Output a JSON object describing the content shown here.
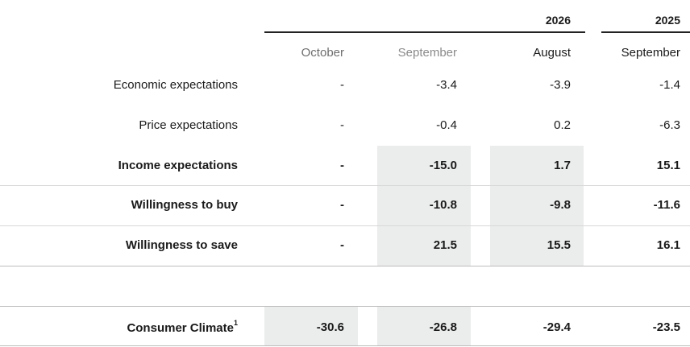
{
  "years": {
    "current": "2026",
    "previous": "2025"
  },
  "months": [
    "October",
    "September",
    "August",
    "September"
  ],
  "rows": [
    {
      "label": "Economic expectations",
      "bold": false,
      "values": [
        "-",
        "-3.4",
        "-3.9",
        "-1.4"
      ]
    },
    {
      "label": "Price expectations",
      "bold": false,
      "values": [
        "-",
        "-0.4",
        "0.2",
        "-6.3"
      ]
    },
    {
      "label": "Income expectations",
      "bold": true,
      "values": [
        "-",
        "-15.0",
        "1.7",
        "15.1"
      ]
    },
    {
      "label": "Willingness to buy",
      "bold": true,
      "values": [
        "-",
        "-10.8",
        "-9.8",
        "-11.6"
      ]
    },
    {
      "label": "Willingness to save",
      "bold": true,
      "values": [
        "-",
        "21.5",
        "15.5",
        "16.1"
      ]
    }
  ],
  "climate": {
    "label": "Consumer Climate",
    "footnote": "1",
    "values": [
      "-30.6",
      "-26.8",
      "-29.4",
      "-23.5"
    ]
  },
  "colors": {
    "shade": "#ebecec",
    "rule": "#222222",
    "divider": "#d8d8d8"
  }
}
